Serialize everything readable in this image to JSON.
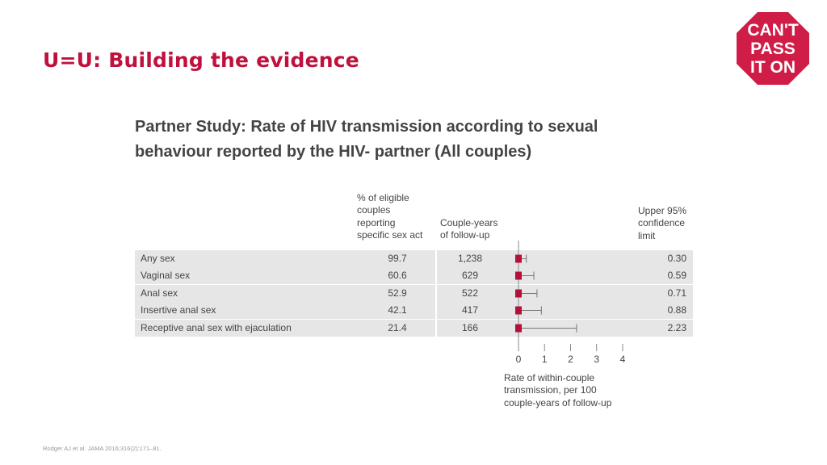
{
  "slide": {
    "title": "U=U: Building the evidence",
    "logo": {
      "lines": [
        "CAN'T",
        "PASS",
        "IT ON"
      ],
      "color": "#d01d47",
      "shape": "octagon"
    },
    "footnote": "Rodger AJ et al. JAMA 2016;316(2):171–81."
  },
  "colors": {
    "title": "#c0103d",
    "marker": "#b5103a",
    "row_background": "#e6e6e6",
    "whisker": "#777777"
  },
  "table": {
    "headers": {
      "percent": [
        "% of eligible",
        "couples",
        "reporting",
        "specific sex act"
      ],
      "couple_years": [
        "Couple-years",
        "of follow-up"
      ],
      "upper_limit": [
        "Upper 95%",
        "confidence",
        "limit"
      ]
    },
    "rows": [
      {
        "label": "Any sex",
        "percent": "99.7",
        "couple_years": "1,238",
        "upper": "0.30"
      },
      {
        "label": "Vaginal sex",
        "percent": "60.6",
        "couple_years": "629",
        "upper": "0.59"
      },
      {
        "label": "Anal sex",
        "percent": "52.9",
        "couple_years": "522",
        "upper": "0.71"
      },
      {
        "label": "Insertive anal sex",
        "percent": "42.1",
        "couple_years": "417",
        "upper": "0.88"
      },
      {
        "label": "Receptive anal sex with ejaculation",
        "percent": "21.4",
        "couple_years": "166",
        "upper": "2.23"
      }
    ]
  },
  "chart_data": {
    "type": "forest",
    "title": [
      "Partner Study: Rate of HIV transmission according to sexual",
      "behaviour reported by the HIV- partner (All couples)"
    ],
    "categories": [
      "Any sex",
      "Vaginal sex",
      "Anal sex",
      "Insertive anal sex",
      "Receptive anal sex with ejaculation"
    ],
    "estimates": [
      0,
      0,
      0,
      0,
      0
    ],
    "lower": [
      0,
      0,
      0,
      0,
      0
    ],
    "upper": [
      0.3,
      0.59,
      0.71,
      0.88,
      2.23
    ],
    "xticks": [
      "0",
      "1",
      "2",
      "3",
      "4"
    ],
    "xlim": [
      0,
      4
    ],
    "xlabel": [
      "Rate of within-couple",
      "transmission, per 100",
      "couple-years of follow-up"
    ],
    "grid": false,
    "marker": "square"
  }
}
